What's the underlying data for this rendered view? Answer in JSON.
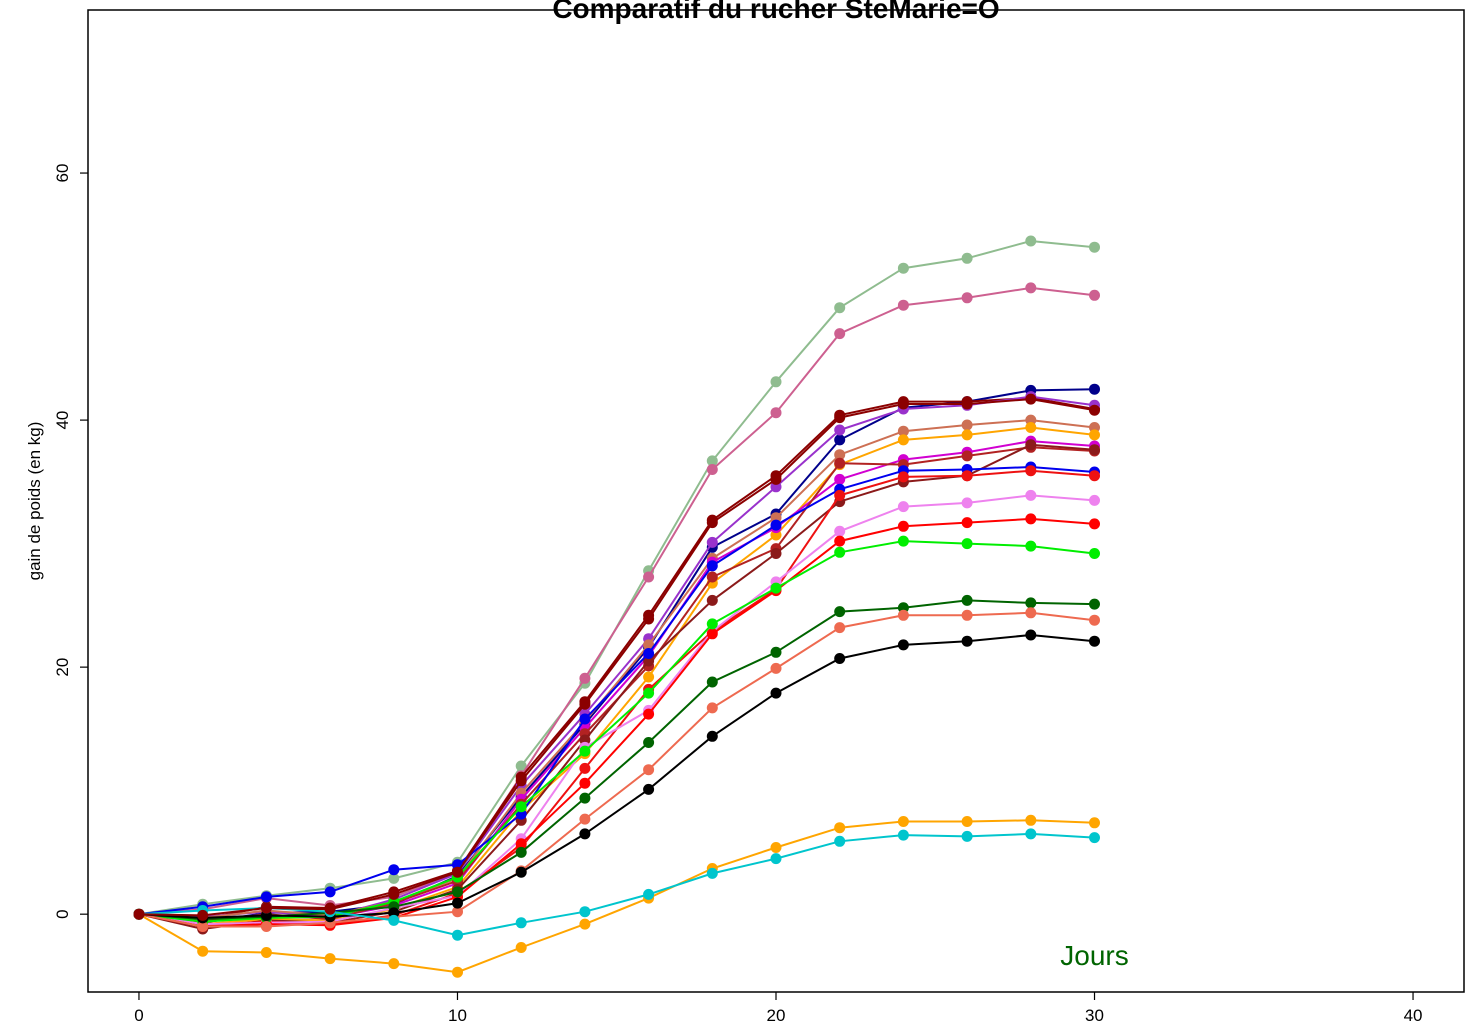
{
  "chart_data": {
    "type": "line",
    "title": "Comparatif du rucher SteMarie=O",
    "xlabel": "",
    "ylabel": "gain de poids (en kg)",
    "annotation": {
      "text": "Jours",
      "color": "#006400"
    },
    "xlim": [
      -1.6,
      41.6
    ],
    "ylim": [
      -6.3,
      73.2
    ],
    "x_ticks": [
      0,
      10,
      20,
      30,
      40
    ],
    "y_ticks": [
      0,
      20,
      40,
      60
    ],
    "grid": false,
    "legend": "none",
    "x": [
      0,
      2,
      4,
      6,
      8,
      10,
      12,
      14,
      16,
      18,
      20,
      22,
      24,
      26,
      28,
      30
    ],
    "series": [
      {
        "color": "#8fbc8f",
        "values": [
          0,
          0.8,
          1.5,
          2.1,
          2.9,
          4.2,
          12.0,
          18.7,
          27.8,
          36.7,
          43.1,
          49.1,
          52.3,
          53.1,
          54.5,
          54.0
        ]
      },
      {
        "color": "#cd6090",
        "values": [
          0,
          0.4,
          1.3,
          0.7,
          1.4,
          3.4,
          11.2,
          19.1,
          27.3,
          36.0,
          40.6,
          47.0,
          49.3,
          49.9,
          50.7,
          50.1
        ]
      },
      {
        "color": "#00008b",
        "values": [
          0,
          -0.7,
          0.1,
          0.2,
          0.8,
          3.1,
          9.5,
          15.4,
          21.6,
          29.7,
          32.4,
          38.4,
          41.0,
          41.5,
          42.4,
          42.5
        ]
      },
      {
        "color": "#8b0000",
        "values": [
          0,
          -0.4,
          0.6,
          0.5,
          1.8,
          3.5,
          11.1,
          17.2,
          24.2,
          31.9,
          35.5,
          40.4,
          41.5,
          41.5,
          41.8,
          40.9
        ]
      },
      {
        "color": "#9932cc",
        "values": [
          0,
          -0.2,
          0.2,
          -0.2,
          1.2,
          3.3,
          10.4,
          16.2,
          22.3,
          30.1,
          34.6,
          39.2,
          40.9,
          41.2,
          41.9,
          41.2
        ]
      },
      {
        "color": "#cd7054",
        "values": [
          0,
          -0.3,
          0.3,
          -0.1,
          1.0,
          2.9,
          9.8,
          15.6,
          21.8,
          28.8,
          32.1,
          37.2,
          39.1,
          39.6,
          40.0,
          39.4
        ]
      },
      {
        "color": "#ffa500",
        "values": [
          0,
          -0.8,
          -0.4,
          -0.5,
          0.4,
          2.2,
          8.4,
          13.0,
          19.2,
          26.8,
          30.7,
          36.4,
          38.4,
          38.8,
          39.4,
          38.8
        ]
      },
      {
        "color": "#d100d1",
        "values": [
          0,
          -0.5,
          -0.2,
          -0.3,
          0.7,
          2.5,
          9.3,
          15.1,
          20.9,
          28.5,
          31.3,
          35.2,
          36.8,
          37.4,
          38.3,
          37.9
        ]
      },
      {
        "color": "#b22222",
        "values": [
          0,
          -0.6,
          0.0,
          -0.4,
          0.9,
          2.7,
          8.9,
          14.6,
          20.1,
          27.3,
          29.6,
          36.5,
          36.4,
          37.1,
          37.8,
          37.5
        ]
      },
      {
        "color": "#8b1a1a",
        "values": [
          0,
          -1.2,
          -0.5,
          -0.7,
          0.2,
          2.0,
          7.6,
          14.1,
          20.5,
          25.4,
          29.2,
          33.4,
          35.0,
          35.5,
          38.0,
          37.6
        ]
      },
      {
        "color": "#0000ee",
        "values": [
          0,
          0.6,
          1.4,
          1.8,
          3.6,
          4.0,
          8.1,
          15.8,
          21.1,
          28.2,
          31.5,
          34.4,
          35.9,
          36.0,
          36.2,
          35.8
        ]
      },
      {
        "color": "#ee1111",
        "values": [
          0,
          -0.9,
          -0.6,
          -0.8,
          -0.1,
          1.7,
          5.4,
          11.8,
          18.2,
          22.9,
          26.3,
          33.9,
          35.4,
          35.5,
          35.9,
          35.5
        ]
      },
      {
        "color": "#ee82ee",
        "values": [
          0,
          -0.8,
          -0.7,
          -0.6,
          0.5,
          1.5,
          6.1,
          13.5,
          16.5,
          22.9,
          26.9,
          31.0,
          33.0,
          33.3,
          33.9,
          33.5
        ]
      },
      {
        "color": "#ff0000",
        "values": [
          0,
          -1.0,
          -0.8,
          -0.9,
          -0.3,
          1.4,
          5.7,
          10.6,
          16.2,
          22.7,
          26.2,
          30.2,
          31.4,
          31.7,
          32.0,
          31.6
        ]
      },
      {
        "color": "#00ee00",
        "values": [
          0,
          -0.6,
          -0.3,
          -0.2,
          1.0,
          3.0,
          8.7,
          13.2,
          17.9,
          23.5,
          26.4,
          29.3,
          30.2,
          30.0,
          29.8,
          29.2
        ]
      },
      {
        "color": "#006400",
        "values": [
          0,
          -0.4,
          -0.2,
          0.1,
          0.6,
          1.8,
          5.0,
          9.4,
          13.9,
          18.8,
          21.2,
          24.5,
          24.8,
          25.4,
          25.2,
          25.1
        ]
      },
      {
        "color": "#ee6a50",
        "values": [
          0,
          -1.0,
          -1.0,
          -0.7,
          -0.2,
          0.2,
          3.5,
          7.7,
          11.7,
          16.7,
          19.9,
          23.2,
          24.2,
          24.2,
          24.4,
          23.8
        ]
      },
      {
        "color": "#000000",
        "values": [
          0,
          -0.3,
          -0.1,
          -0.2,
          0.1,
          0.9,
          3.4,
          6.5,
          10.1,
          14.4,
          17.9,
          20.7,
          21.8,
          22.1,
          22.6,
          22.1
        ]
      },
      {
        "color": "#ffa500",
        "values": [
          0,
          -3.0,
          -3.1,
          -3.6,
          -4.0,
          -4.7,
          -2.7,
          -0.8,
          1.3,
          3.7,
          5.4,
          7.0,
          7.5,
          7.5,
          7.6,
          7.4
        ]
      },
      {
        "color": "#00c5cd",
        "values": [
          0,
          0.3,
          0.5,
          0.2,
          -0.5,
          -1.7,
          -0.7,
          0.2,
          1.6,
          3.3,
          4.5,
          5.9,
          6.4,
          6.3,
          6.5,
          6.2
        ]
      },
      {
        "color": "#8b0000",
        "values": [
          0,
          -0.1,
          0.5,
          0.4,
          1.6,
          3.4,
          10.8,
          17.0,
          23.9,
          31.7,
          35.2,
          40.2,
          41.3,
          41.3,
          41.7,
          40.8
        ]
      }
    ]
  }
}
